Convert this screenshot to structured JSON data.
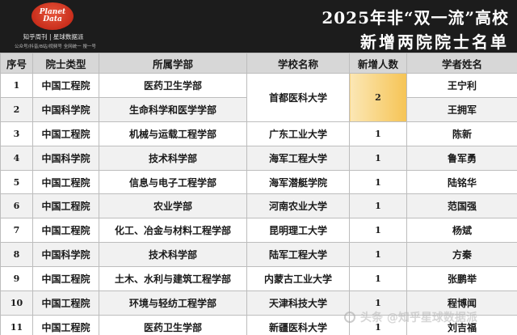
{
  "header": {
    "logo_line1": "Planet",
    "logo_line2": "Data",
    "slogan_main": "知乎周刊 | 星球数据派",
    "slogan_sub": "公众号/抖音/B站/视频号 全网统一 搜一号",
    "title_line1": "2025年非“双一流”高校",
    "title_line2": "新增两院院士名单"
  },
  "table": {
    "columns": [
      "序号",
      "院士类型",
      "所属学部",
      "学校名称",
      "新增人数",
      "学者姓名"
    ],
    "rows": [
      {
        "idx": "1",
        "type": "中国工程院",
        "division": "医药卫生学部",
        "school": "首都医科大学",
        "count": "2",
        "name": "王宁利"
      },
      {
        "idx": "2",
        "type": "中国科学院",
        "division": "生命科学和医学学部",
        "school": "",
        "count": "",
        "name": "王拥军"
      },
      {
        "idx": "3",
        "type": "中国工程院",
        "division": "机械与运载工程学部",
        "school": "广东工业大学",
        "count": "1",
        "name": "陈新"
      },
      {
        "idx": "4",
        "type": "中国科学院",
        "division": "技术科学部",
        "school": "海军工程大学",
        "count": "1",
        "name": "鲁军勇"
      },
      {
        "idx": "5",
        "type": "中国工程院",
        "division": "信息与电子工程学部",
        "school": "海军潜艇学院",
        "count": "1",
        "name": "陆铭华"
      },
      {
        "idx": "6",
        "type": "中国工程院",
        "division": "农业学部",
        "school": "河南农业大学",
        "count": "1",
        "name": "范国强"
      },
      {
        "idx": "7",
        "type": "中国工程院",
        "division": "化工、冶金与材料工程学部",
        "school": "昆明理工大学",
        "count": "1",
        "name": "杨斌"
      },
      {
        "idx": "8",
        "type": "中国科学院",
        "division": "技术科学部",
        "school": "陆军工程大学",
        "count": "1",
        "name": "方秦"
      },
      {
        "idx": "9",
        "type": "中国工程院",
        "division": "土木、水利与建筑工程学部",
        "school": "内蒙古工业大学",
        "count": "1",
        "name": "张鹏举"
      },
      {
        "idx": "10",
        "type": "中国工程院",
        "division": "环境与轻纺工程学部",
        "school": "天津科技大学",
        "count": "1",
        "name": "程博闻"
      },
      {
        "idx": "11",
        "type": "中国工程院",
        "division": "医药卫生学部",
        "school": "新疆医科大学",
        "count": "1",
        "name": "刘吉福"
      }
    ]
  },
  "watermark": "头条 @知乎星球数据派"
}
